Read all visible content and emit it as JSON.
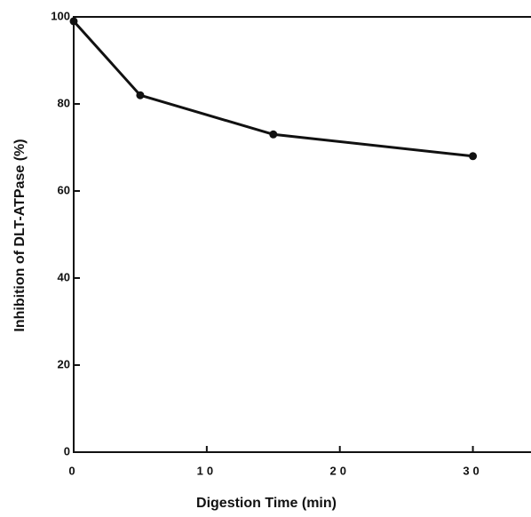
{
  "chart_data": {
    "type": "line",
    "x_label": "Digestion Time (min)",
    "y_label": "Inhibition of DLT-ATPase (%)",
    "x": [
      0,
      5,
      15,
      30
    ],
    "series": [
      {
        "color": "#111111",
        "values": [
          99,
          82,
          73,
          68
        ]
      }
    ],
    "xlim": [
      0,
      34.3
    ],
    "xticks": [
      0,
      10,
      20,
      30
    ],
    "ylim": [
      0,
      100
    ],
    "yticks": [
      0,
      20,
      40,
      60,
      80,
      100
    ]
  }
}
